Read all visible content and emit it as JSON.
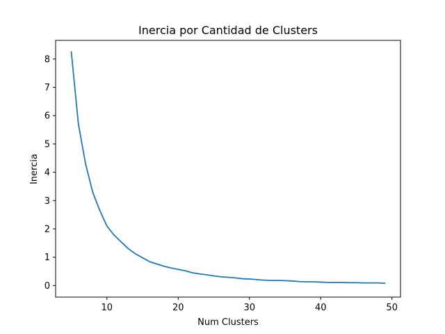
{
  "chart_data": {
    "type": "line",
    "title": "Inercia por Cantidad de Clusters",
    "xlabel": "Num Clusters",
    "ylabel": "Inercia",
    "xlim": [
      2.8,
      51.2
    ],
    "ylim": [
      -0.41,
      8.66
    ],
    "xticks": [
      10,
      20,
      30,
      40,
      50
    ],
    "yticks": [
      0,
      1,
      2,
      3,
      4,
      5,
      6,
      7,
      8
    ],
    "grid": false,
    "legend": "none",
    "series": [
      {
        "color": "#1f77b4",
        "x": [
          5,
          6,
          7,
          8,
          9,
          10,
          11,
          12,
          13,
          14,
          15,
          16,
          17,
          18,
          19,
          20,
          21,
          22,
          23,
          24,
          25,
          26,
          27,
          28,
          29,
          30,
          31,
          32,
          33,
          34,
          35,
          36,
          37,
          38,
          39,
          40,
          41,
          42,
          43,
          44,
          45,
          46,
          47,
          48,
          49
        ],
        "y": [
          8.25,
          5.7,
          4.3,
          3.3,
          2.65,
          2.1,
          1.78,
          1.54,
          1.3,
          1.12,
          0.98,
          0.84,
          0.76,
          0.68,
          0.62,
          0.57,
          0.52,
          0.45,
          0.41,
          0.38,
          0.34,
          0.31,
          0.29,
          0.27,
          0.24,
          0.23,
          0.21,
          0.19,
          0.18,
          0.18,
          0.17,
          0.16,
          0.14,
          0.13,
          0.13,
          0.12,
          0.11,
          0.11,
          0.11,
          0.1,
          0.1,
          0.09,
          0.09,
          0.09,
          0.08
        ]
      }
    ]
  }
}
